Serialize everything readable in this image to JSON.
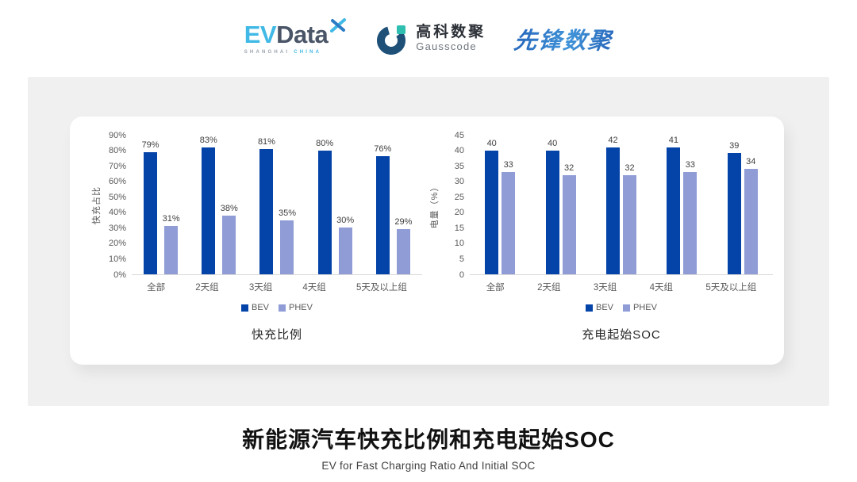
{
  "header": {
    "logos": {
      "evdata": {
        "ev": "EV",
        "data": "Data",
        "sub_left": "SHANGHAI",
        "sub_right": "CHINA"
      },
      "gausscode": {
        "cn": "高科数聚",
        "en": "Gausscode"
      },
      "xianfeng": {
        "text": "先锋数聚"
      }
    }
  },
  "colors": {
    "series": [
      "#0443a8",
      "#8f9cd6"
    ],
    "axis_text": "#595959",
    "axis_line": "#d9d9d9",
    "panel_bg": "#f0f0f1",
    "evdata_cyan": "#41b9e6",
    "evdata_slate": "#4a5568",
    "gauss_navy": "#1e5078",
    "gauss_teal": "#2fbfb0",
    "xianfeng_blue": "#2a6cbe"
  },
  "chart_data": [
    {
      "type": "bar",
      "title": "快充比例",
      "ylabel": "快充占比",
      "categories": [
        "全部",
        "2天组",
        "3天组",
        "4天组",
        "5天及以上组"
      ],
      "series": [
        {
          "name": "BEV",
          "values": [
            79,
            83,
            81,
            80,
            76
          ]
        },
        {
          "name": "PHEV",
          "values": [
            31,
            38,
            35,
            30,
            29
          ]
        }
      ],
      "value_suffix": "%",
      "ylim": [
        0,
        90
      ],
      "ytick_step": 10,
      "ytick_suffix": "%",
      "legend": [
        "BEV",
        "PHEV"
      ],
      "legend_position": "bottom",
      "grid": false
    },
    {
      "type": "bar",
      "title": "充电起始SOC",
      "ylabel": "电量（%）",
      "categories": [
        "全部",
        "2天组",
        "3天组",
        "4天组",
        "5天及以上组"
      ],
      "series": [
        {
          "name": "BEV",
          "values": [
            40,
            40,
            42,
            41,
            39
          ]
        },
        {
          "name": "PHEV",
          "values": [
            33,
            32,
            32,
            33,
            34
          ]
        }
      ],
      "value_suffix": "",
      "ylim": [
        0,
        45
      ],
      "ytick_step": 5,
      "ytick_suffix": "",
      "legend": [
        "BEV",
        "PHEV"
      ],
      "legend_position": "bottom",
      "grid": false
    }
  ],
  "footer": {
    "title": "新能源汽车快充比例和充电起始SOC",
    "subtitle": "EV for Fast Charging Ratio And Initial SOC"
  }
}
